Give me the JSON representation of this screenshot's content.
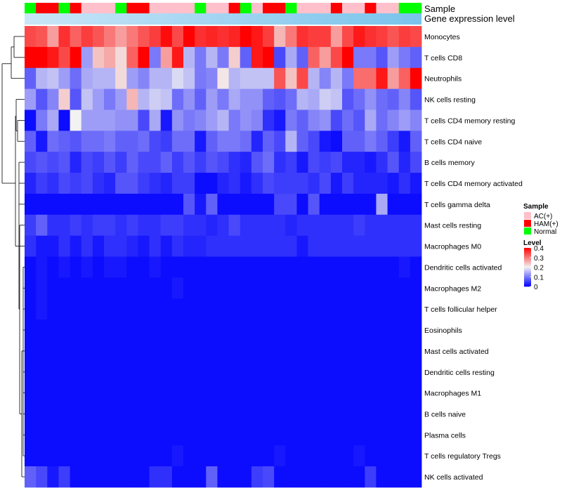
{
  "chart_data": {
    "type": "heatmap",
    "title": "",
    "annotation_tracks": [
      {
        "label": "Sample",
        "values": [
          "N",
          "H",
          "H",
          "N",
          "H",
          "A",
          "A",
          "A",
          "N",
          "H",
          "H",
          "A",
          "A",
          "A",
          "A",
          "N",
          "A",
          "A",
          "H",
          "N",
          "A",
          "H",
          "H",
          "N",
          "A",
          "A",
          "A",
          "H",
          "A",
          "A",
          "H",
          "A",
          "A",
          "N",
          "N"
        ]
      },
      {
        "label": "Gene expression level",
        "values": []
      }
    ],
    "rows": [
      "Monocytes",
      "T cells CD8",
      "Neutrophils",
      "NK cells resting",
      "T cells CD4 memory resting",
      "T cells CD4 naive",
      "B cells memory",
      "T cells CD4 memory activated",
      "T cells gamma delta",
      "Mast cells resting",
      "Macrophages M0",
      "Dendritic cells activated",
      "Macrophages M2",
      "T cells follicular helper",
      "Eosinophils",
      "Mast cells activated",
      "Dendritic cells resting",
      "Macrophages M1",
      "B cells naive",
      "Plasma cells",
      "T cells regulatory  Tregs",
      "NK cells activated"
    ],
    "values": [
      [
        0.34,
        0.33,
        0.27,
        0.36,
        0.32,
        0.35,
        0.33,
        0.3,
        0.27,
        0.3,
        0.33,
        0.35,
        0.39,
        0.34,
        0.4,
        0.36,
        0.37,
        0.36,
        0.37,
        0.4,
        0.38,
        0.35,
        0.25,
        0.3,
        0.36,
        0.35,
        0.35,
        0.27,
        0.34,
        0.38,
        0.36,
        0.35,
        0.33,
        0.35,
        0.34
      ],
      [
        0.4,
        0.4,
        0.38,
        0.34,
        0.4,
        0.13,
        0.24,
        0.26,
        0.22,
        0.32,
        0.4,
        0.1,
        0.27,
        0.38,
        0.15,
        0.1,
        0.15,
        0.1,
        0.23,
        0.08,
        0.38,
        0.4,
        0.06,
        0.14,
        0.08,
        0.32,
        0.27,
        0.34,
        0.4,
        0.1,
        0.1,
        0.07,
        0.13,
        0.1,
        0.08
      ],
      [
        0.08,
        0.15,
        0.16,
        0.13,
        0.09,
        0.14,
        0.15,
        0.15,
        0.22,
        0.13,
        0.11,
        0.15,
        0.15,
        0.18,
        0.16,
        0.1,
        0.11,
        0.21,
        0.15,
        0.16,
        0.16,
        0.16,
        0.33,
        0.24,
        0.34,
        0.15,
        0.11,
        0.15,
        0.1,
        0.31,
        0.31,
        0.38,
        0.27,
        0.32,
        0.4
      ],
      [
        0.13,
        0.07,
        0.11,
        0.23,
        0.07,
        0.16,
        0.13,
        0.1,
        0.13,
        0.25,
        0.15,
        0.17,
        0.16,
        0.09,
        0.12,
        0.08,
        0.13,
        0.1,
        0.14,
        0.12,
        0.12,
        0.08,
        0.07,
        0.09,
        0.15,
        0.14,
        0.17,
        0.16,
        0.07,
        0.09,
        0.12,
        0.09,
        0.08,
        0.11,
        0.07
      ],
      [
        0.01,
        0.1,
        0.14,
        0.01,
        0.2,
        0.13,
        0.13,
        0.13,
        0.12,
        0.12,
        0.06,
        0.14,
        0.02,
        0.12,
        0.1,
        0.11,
        0.13,
        0.15,
        0.1,
        0.12,
        0.11,
        0.04,
        0.02,
        0.1,
        0.08,
        0.11,
        0.12,
        0.06,
        0.09,
        0.07,
        0.14,
        0.09,
        0.11,
        0.13,
        0.11
      ],
      [
        0.08,
        0.02,
        0.09,
        0.08,
        0.07,
        0.09,
        0.09,
        0.1,
        0.08,
        0.08,
        0.09,
        0.06,
        0.05,
        0.09,
        0.09,
        0.02,
        0.08,
        0.1,
        0.1,
        0.09,
        0.03,
        0.08,
        0.06,
        0.15,
        0.08,
        0.06,
        0.02,
        0.01,
        0.08,
        0.08,
        0.1,
        0.08,
        0.05,
        0.02,
        0.08
      ],
      [
        0.06,
        0.07,
        0.06,
        0.07,
        0.03,
        0.06,
        0.05,
        0.07,
        0.05,
        0.08,
        0.06,
        0.06,
        0.08,
        0.05,
        0.07,
        0.05,
        0.07,
        0.06,
        0.04,
        0.03,
        0.07,
        0.09,
        0.04,
        0.05,
        0.02,
        0.06,
        0.05,
        0.06,
        0.03,
        0.03,
        0.02,
        0.04,
        0.07,
        0.03,
        0.06
      ],
      [
        0.03,
        0.05,
        0.04,
        0.06,
        0.05,
        0.06,
        0.04,
        0.03,
        0.07,
        0.07,
        0.05,
        0.04,
        0.03,
        0.05,
        0.05,
        0.01,
        0.01,
        0.03,
        0.04,
        0.02,
        0.04,
        0.06,
        0.05,
        0.05,
        0.05,
        0.04,
        0.06,
        0.02,
        0.05,
        0.03,
        0.03,
        0.03,
        0.02,
        0.04,
        0.02
      ],
      [
        0.01,
        0.01,
        0.01,
        0.01,
        0.01,
        0.01,
        0.01,
        0.01,
        0.01,
        0.01,
        0.01,
        0.01,
        0.01,
        0.01,
        0.07,
        0.02,
        0.08,
        0.01,
        0.01,
        0.01,
        0.01,
        0.01,
        0.06,
        0.06,
        0.01,
        0.07,
        0.01,
        0.01,
        0.01,
        0.01,
        0.01,
        0.14,
        0.01,
        0.01,
        0.01
      ],
      [
        0.05,
        0.08,
        0.04,
        0.04,
        0.05,
        0.04,
        0.05,
        0.05,
        0.04,
        0.05,
        0.04,
        0.04,
        0.05,
        0.05,
        0.04,
        0.04,
        0.03,
        0.04,
        0.06,
        0.04,
        0.04,
        0.04,
        0.04,
        0.03,
        0.04,
        0.04,
        0.04,
        0.04,
        0.04,
        0.05,
        0.04,
        0.04,
        0.04,
        0.04,
        0.04
      ],
      [
        0.04,
        0.02,
        0.02,
        0.04,
        0.02,
        0.04,
        0.02,
        0.04,
        0.04,
        0.03,
        0.02,
        0.04,
        0.02,
        0.04,
        0.03,
        0.03,
        0.04,
        0.04,
        0.04,
        0.04,
        0.04,
        0.04,
        0.04,
        0.04,
        0.02,
        0.04,
        0.04,
        0.04,
        0.04,
        0.04,
        0.04,
        0.04,
        0.04,
        0.04,
        0.04
      ],
      [
        0.01,
        0.02,
        0.01,
        0.02,
        0.01,
        0.02,
        0.01,
        0.02,
        0.02,
        0.01,
        0.01,
        0.02,
        0.01,
        0.01,
        0.01,
        0.01,
        0.01,
        0.01,
        0.01,
        0.01,
        0.01,
        0.01,
        0.01,
        0.01,
        0.01,
        0.01,
        0.01,
        0.01,
        0.01,
        0.01,
        0.01,
        0.01,
        0.01,
        0.02,
        0.01
      ],
      [
        0.01,
        0.02,
        0.01,
        0.01,
        0.01,
        0.01,
        0.01,
        0.01,
        0.01,
        0.01,
        0.01,
        0.01,
        0.01,
        0.02,
        0.01,
        0.01,
        0.01,
        0.01,
        0.01,
        0.01,
        0.01,
        0.01,
        0.01,
        0.01,
        0.01,
        0.01,
        0.01,
        0.01,
        0.01,
        0.01,
        0.01,
        0.01,
        0.01,
        0.01,
        0.01
      ],
      [
        0.01,
        0.02,
        0.01,
        0.01,
        0.01,
        0.01,
        0.01,
        0.01,
        0.01,
        0.01,
        0.01,
        0.01,
        0.01,
        0.01,
        0.01,
        0.01,
        0.01,
        0.01,
        0.01,
        0.01,
        0.01,
        0.01,
        0.01,
        0.01,
        0.01,
        0.01,
        0.01,
        0.01,
        0.01,
        0.01,
        0.01,
        0.01,
        0.01,
        0.01,
        0.01
      ],
      [
        0.01,
        0.01,
        0.01,
        0.01,
        0.01,
        0.01,
        0.01,
        0.01,
        0.01,
        0.01,
        0.01,
        0.01,
        0.01,
        0.01,
        0.01,
        0.01,
        0.01,
        0.01,
        0.01,
        0.01,
        0.01,
        0.01,
        0.01,
        0.01,
        0.01,
        0.01,
        0.01,
        0.01,
        0.01,
        0.01,
        0.01,
        0.01,
        0.01,
        0.01,
        0.01
      ],
      [
        0.01,
        0.01,
        0.01,
        0.01,
        0.01,
        0.01,
        0.01,
        0.01,
        0.01,
        0.01,
        0.01,
        0.01,
        0.01,
        0.01,
        0.01,
        0.01,
        0.01,
        0.01,
        0.01,
        0.01,
        0.01,
        0.01,
        0.01,
        0.01,
        0.01,
        0.01,
        0.01,
        0.01,
        0.01,
        0.01,
        0.01,
        0.01,
        0.01,
        0.01,
        0.01
      ],
      [
        0.01,
        0.01,
        0.01,
        0.01,
        0.01,
        0.01,
        0.01,
        0.01,
        0.01,
        0.01,
        0.01,
        0.01,
        0.01,
        0.01,
        0.01,
        0.01,
        0.01,
        0.01,
        0.01,
        0.01,
        0.01,
        0.01,
        0.01,
        0.01,
        0.01,
        0.01,
        0.01,
        0.01,
        0.01,
        0.01,
        0.01,
        0.01,
        0.01,
        0.01,
        0.01
      ],
      [
        0.01,
        0.01,
        0.01,
        0.01,
        0.01,
        0.01,
        0.01,
        0.01,
        0.01,
        0.01,
        0.01,
        0.01,
        0.01,
        0.01,
        0.01,
        0.01,
        0.01,
        0.01,
        0.01,
        0.01,
        0.01,
        0.01,
        0.01,
        0.01,
        0.01,
        0.01,
        0.01,
        0.01,
        0.01,
        0.01,
        0.01,
        0.01,
        0.01,
        0.01,
        0.01
      ],
      [
        0.01,
        0.01,
        0.01,
        0.01,
        0.01,
        0.01,
        0.01,
        0.01,
        0.01,
        0.01,
        0.01,
        0.01,
        0.01,
        0.01,
        0.01,
        0.01,
        0.01,
        0.01,
        0.01,
        0.01,
        0.01,
        0.01,
        0.01,
        0.01,
        0.01,
        0.01,
        0.01,
        0.01,
        0.01,
        0.01,
        0.01,
        0.01,
        0.01,
        0.01,
        0.01
      ],
      [
        0.01,
        0.01,
        0.01,
        0.01,
        0.01,
        0.01,
        0.01,
        0.01,
        0.01,
        0.01,
        0.01,
        0.01,
        0.01,
        0.01,
        0.01,
        0.01,
        0.01,
        0.01,
        0.01,
        0.01,
        0.01,
        0.01,
        0.01,
        0.01,
        0.01,
        0.01,
        0.01,
        0.01,
        0.01,
        0.01,
        0.01,
        0.01,
        0.01,
        0.01,
        0.01
      ],
      [
        0.01,
        0.01,
        0.01,
        0.01,
        0.01,
        0.01,
        0.01,
        0.01,
        0.01,
        0.01,
        0.01,
        0.01,
        0.01,
        0.02,
        0.01,
        0.01,
        0.01,
        0.01,
        0.01,
        0.01,
        0.01,
        0.01,
        0.02,
        0.01,
        0.01,
        0.01,
        0.01,
        0.01,
        0.01,
        0.02,
        0.01,
        0.01,
        0.01,
        0.01,
        0.01
      ],
      [
        0.08,
        0.06,
        0.02,
        0.05,
        0.01,
        0.01,
        0.01,
        0.01,
        0.01,
        0.01,
        0.01,
        0.04,
        0.04,
        0.01,
        0.01,
        0.01,
        0.08,
        0.01,
        0.01,
        0.01,
        0.05,
        0.06,
        0.01,
        0.01,
        0.01,
        0.01,
        0.01,
        0.01,
        0.01,
        0.01,
        0.05,
        0.01,
        0.01,
        0.01,
        0.01
      ]
    ],
    "color_scale": {
      "title": "Level",
      "ticks": [
        0.4,
        0.3,
        0.2,
        0.1,
        0
      ],
      "tick_labels": [
        "0.4",
        "0.3",
        "0.2",
        "0.1",
        "0"
      ],
      "stops": [
        [
          0,
          "#0000FF"
        ],
        [
          0.2,
          "#F2F2F2"
        ],
        [
          0.4,
          "#FF0000"
        ]
      ]
    },
    "legend": {
      "title": "Sample",
      "placement": "right",
      "entries": [
        {
          "key": "A",
          "label": "AC(+)",
          "color": "#FFC0CB"
        },
        {
          "key": "H",
          "label": "HAM(+)",
          "color": "#FF0000"
        },
        {
          "key": "N",
          "label": "Normal",
          "color": "#00FF00"
        }
      ]
    },
    "gene_level_color": "#79C3EC",
    "row_dendrogram": true
  }
}
